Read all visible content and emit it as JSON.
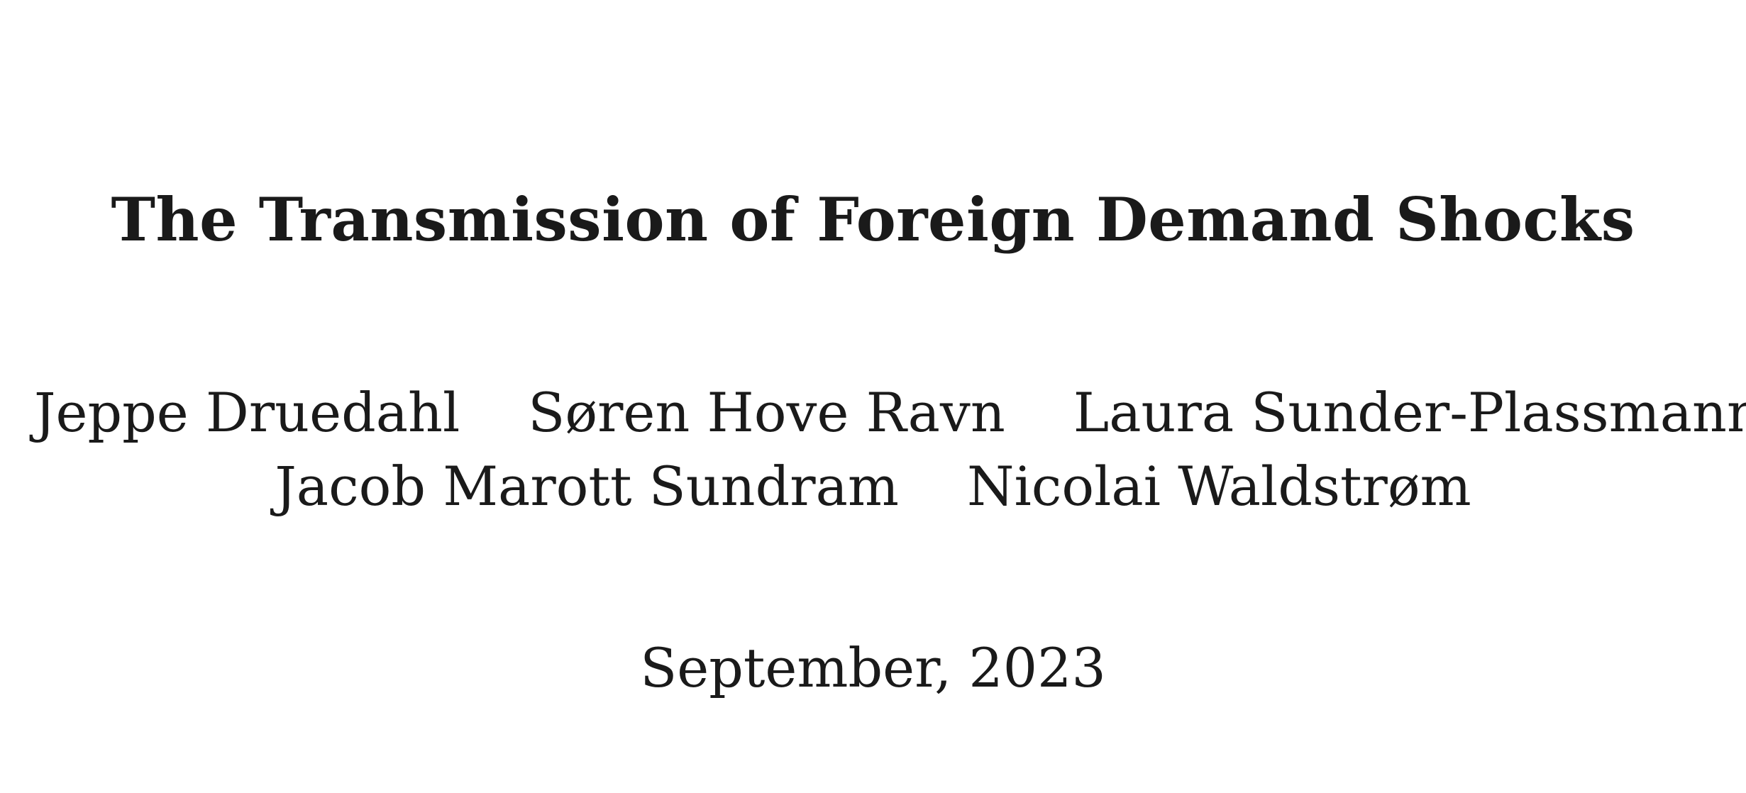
{
  "paper": {
    "title": "The Transmission of Foreign Demand Shocks",
    "authors_row_1": [
      "Jeppe Druedahl",
      "Søren Hove Ravn",
      "Laura Sunder-Plassmann"
    ],
    "authors_row_2": [
      "Jacob Marott Sundram",
      "Nicolai Waldstrøm"
    ],
    "date": "September, 2023"
  }
}
